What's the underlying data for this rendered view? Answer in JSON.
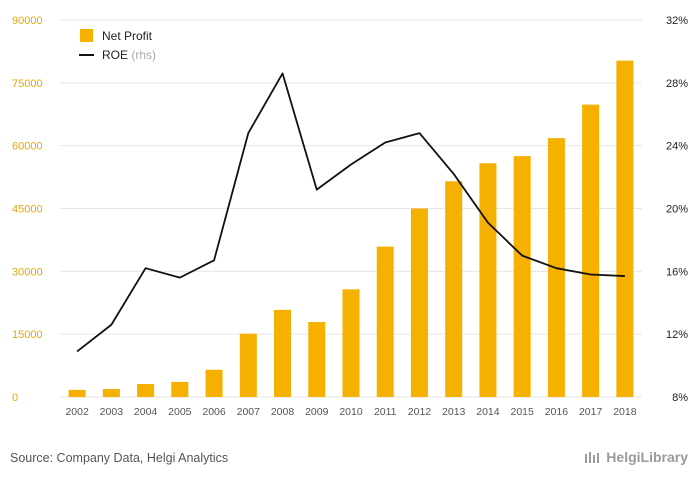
{
  "chart_data": {
    "type": "bar",
    "categories": [
      "2002",
      "2003",
      "2004",
      "2005",
      "2006",
      "2007",
      "2008",
      "2009",
      "2010",
      "2011",
      "2012",
      "2013",
      "2014",
      "2015",
      "2016",
      "2017",
      "2018"
    ],
    "series": [
      {
        "name": "Net Profit",
        "type": "bar",
        "axis": "left",
        "color": "#f5b000",
        "values": [
          1700,
          1900,
          3100,
          3600,
          6500,
          15100,
          20800,
          17900,
          25700,
          35900,
          45000,
          51500,
          55800,
          57500,
          61800,
          69800,
          80300
        ]
      },
      {
        "name": "ROE",
        "name_suffix": "(rhs)",
        "type": "line",
        "axis": "right",
        "color": "#111111",
        "values": [
          10.9,
          12.6,
          16.2,
          15.6,
          16.7,
          24.8,
          28.6,
          21.2,
          22.8,
          24.2,
          24.8,
          22.2,
          19.1,
          17.0,
          16.2,
          15.8,
          15.7
        ]
      }
    ],
    "y_left": {
      "ylim": [
        0,
        90000
      ],
      "ticks": [
        "0",
        "15000",
        "30000",
        "45000",
        "60000",
        "75000",
        "90000"
      ]
    },
    "y_right": {
      "ylim": [
        8,
        32
      ],
      "ticks": [
        "8%",
        "12%",
        "16%",
        "20%",
        "24%",
        "28%",
        "32%"
      ]
    },
    "grid": true,
    "legend": "top-left",
    "title": "",
    "xlabel": "",
    "ylabel": ""
  },
  "footer": {
    "source": "Source: Company Data, Helgi Analytics",
    "brand": "HelgiLibrary"
  }
}
